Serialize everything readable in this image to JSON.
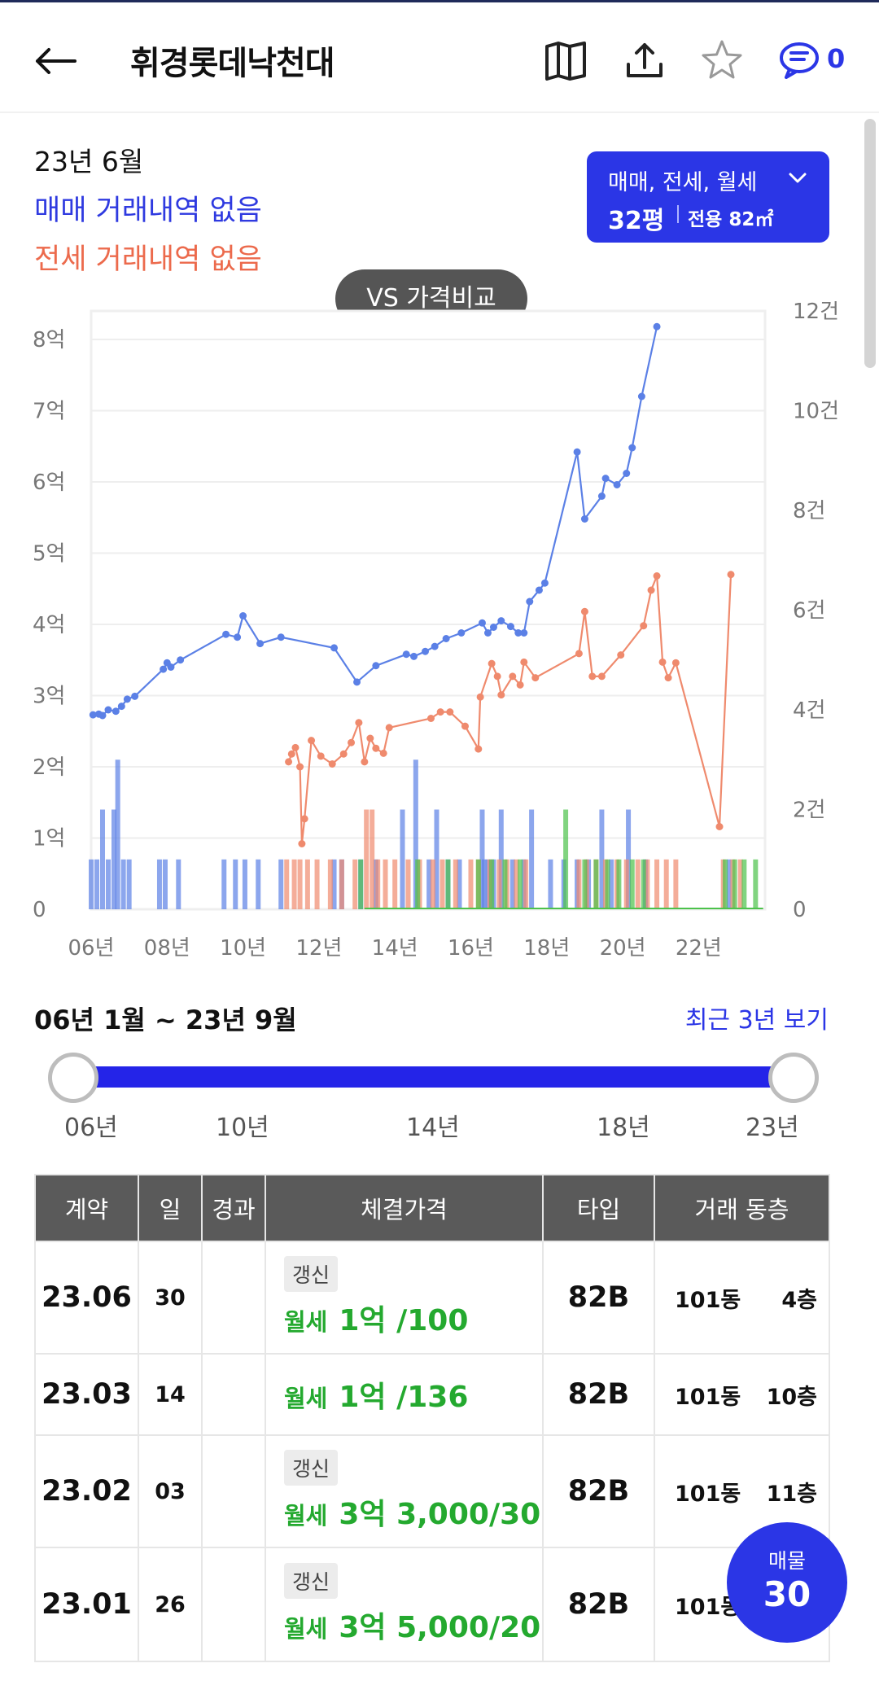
{
  "header": {
    "title": "휘경롯데낙천대",
    "comment_count": "0",
    "icons": [
      "back-arrow-icon",
      "map-icon",
      "share-icon",
      "star-icon",
      "comment-icon"
    ]
  },
  "info": {
    "date": "23년 6월",
    "sale_status": "매매 거래내역 없음",
    "jeonse_status": "전세 거래내역 없음"
  },
  "filter": {
    "types": "매매, 전세, 월세",
    "pyeong": "32평",
    "area": "전용 82㎡"
  },
  "vs_button": "VS 가격비교",
  "colors": {
    "accent": "#2b36e6",
    "sale": "#5b80e6",
    "jeonse": "#ef8a6d",
    "monthly": "#4cc24a"
  },
  "chart_data": {
    "type": "line",
    "left_ticks": [
      "8억",
      "7억",
      "6억",
      "5억",
      "4억",
      "3억",
      "2억",
      "1억",
      "0"
    ],
    "right_ticks": [
      "12건",
      "10건",
      "8건",
      "6건",
      "4건",
      "2건",
      "0"
    ],
    "x_ticks": [
      "06년",
      "08년",
      "10년",
      "12년",
      "14년",
      "16년",
      "18년",
      "20년",
      "22년"
    ],
    "ylim": [
      0,
      8.4
    ],
    "y2lim": [
      0,
      12
    ],
    "xlim": [
      2006.0,
      2023.75
    ],
    "series": [
      {
        "name": "매매",
        "color": "#5b80e6",
        "points": [
          [
            2006.05,
            2.73
          ],
          [
            2006.2,
            2.74
          ],
          [
            2006.3,
            2.72
          ],
          [
            2006.45,
            2.8
          ],
          [
            2006.65,
            2.78
          ],
          [
            2006.8,
            2.85
          ],
          [
            2006.95,
            2.95
          ],
          [
            2007.15,
            2.99
          ],
          [
            2007.9,
            3.37
          ],
          [
            2008.0,
            3.46
          ],
          [
            2008.1,
            3.4
          ],
          [
            2008.35,
            3.5
          ],
          [
            2009.55,
            3.86
          ],
          [
            2009.85,
            3.82
          ],
          [
            2010.0,
            4.12
          ],
          [
            2010.45,
            3.73
          ],
          [
            2011.0,
            3.82
          ],
          [
            2012.4,
            3.67
          ],
          [
            2013.0,
            3.19
          ],
          [
            2013.5,
            3.42
          ],
          [
            2014.3,
            3.58
          ],
          [
            2014.5,
            3.55
          ],
          [
            2014.8,
            3.62
          ],
          [
            2015.05,
            3.69
          ],
          [
            2015.35,
            3.8
          ],
          [
            2015.75,
            3.88
          ],
          [
            2016.3,
            4.02
          ],
          [
            2016.45,
            3.88
          ],
          [
            2016.6,
            3.96
          ],
          [
            2016.8,
            4.05
          ],
          [
            2017.05,
            3.97
          ],
          [
            2017.25,
            3.88
          ],
          [
            2017.4,
            3.88
          ],
          [
            2017.55,
            4.32
          ],
          [
            2017.8,
            4.48
          ],
          [
            2017.95,
            4.58
          ],
          [
            2018.8,
            6.42
          ],
          [
            2019.0,
            5.48
          ],
          [
            2019.45,
            5.8
          ],
          [
            2019.55,
            6.05
          ],
          [
            2019.85,
            5.96
          ],
          [
            2020.1,
            6.12
          ],
          [
            2020.25,
            6.48
          ],
          [
            2020.5,
            7.2
          ],
          [
            2020.9,
            8.18
          ]
        ]
      },
      {
        "name": "전세",
        "color": "#ef8a6d",
        "points": [
          [
            2011.2,
            2.07
          ],
          [
            2011.28,
            2.18
          ],
          [
            2011.38,
            2.27
          ],
          [
            2011.5,
            2.0
          ],
          [
            2011.55,
            0.92
          ],
          [
            2011.62,
            1.27
          ],
          [
            2011.8,
            2.37
          ],
          [
            2012.05,
            2.15
          ],
          [
            2012.35,
            2.04
          ],
          [
            2012.65,
            2.18
          ],
          [
            2012.85,
            2.34
          ],
          [
            2013.05,
            2.62
          ],
          [
            2013.2,
            2.07
          ],
          [
            2013.35,
            2.4
          ],
          [
            2013.5,
            2.26
          ],
          [
            2013.7,
            2.19
          ],
          [
            2013.85,
            2.55
          ],
          [
            2014.95,
            2.68
          ],
          [
            2015.2,
            2.77
          ],
          [
            2015.45,
            2.77
          ],
          [
            2015.85,
            2.57
          ],
          [
            2016.2,
            2.25
          ],
          [
            2016.25,
            2.98
          ],
          [
            2016.55,
            3.45
          ],
          [
            2016.7,
            3.27
          ],
          [
            2016.8,
            3.01
          ],
          [
            2017.1,
            3.27
          ],
          [
            2017.3,
            3.15
          ],
          [
            2017.4,
            3.47
          ],
          [
            2017.7,
            3.25
          ],
          [
            2018.85,
            3.59
          ],
          [
            2019.0,
            4.18
          ],
          [
            2019.2,
            3.27
          ],
          [
            2019.45,
            3.27
          ],
          [
            2019.95,
            3.57
          ],
          [
            2020.55,
            3.98
          ],
          [
            2020.75,
            4.48
          ],
          [
            2020.9,
            4.68
          ],
          [
            2021.05,
            3.47
          ],
          [
            2021.2,
            3.25
          ],
          [
            2021.4,
            3.46
          ],
          [
            2022.55,
            1.16
          ],
          [
            2022.85,
            4.7
          ]
        ]
      }
    ],
    "volume_note": "bar heights in 건 (transactions per month)",
    "volume_sale": [
      [
        2006.0,
        1
      ],
      [
        2006.15,
        1
      ],
      [
        2006.3,
        2
      ],
      [
        2006.45,
        1
      ],
      [
        2006.6,
        2
      ],
      [
        2006.7,
        3
      ],
      [
        2006.85,
        1
      ],
      [
        2007.0,
        1
      ],
      [
        2007.8,
        1
      ],
      [
        2007.95,
        1
      ],
      [
        2008.3,
        1
      ],
      [
        2009.5,
        1
      ],
      [
        2009.8,
        1
      ],
      [
        2010.05,
        1
      ],
      [
        2010.4,
        1
      ],
      [
        2011.0,
        1
      ],
      [
        2012.4,
        1
      ],
      [
        2012.6,
        1
      ],
      [
        2013.1,
        1
      ],
      [
        2013.5,
        1
      ],
      [
        2014.2,
        2
      ],
      [
        2014.55,
        3
      ],
      [
        2014.9,
        1
      ],
      [
        2015.1,
        2
      ],
      [
        2015.4,
        1
      ],
      [
        2015.7,
        1
      ],
      [
        2016.3,
        2
      ],
      [
        2016.35,
        1
      ],
      [
        2016.45,
        1
      ],
      [
        2016.6,
        1
      ],
      [
        2016.8,
        2
      ],
      [
        2017.1,
        1
      ],
      [
        2017.4,
        1
      ],
      [
        2017.6,
        2
      ],
      [
        2018.1,
        1
      ],
      [
        2018.45,
        1
      ],
      [
        2018.8,
        1
      ],
      [
        2019.1,
        1
      ],
      [
        2019.45,
        2
      ],
      [
        2019.7,
        1
      ],
      [
        2020.15,
        2
      ],
      [
        2020.6,
        1
      ],
      [
        2022.8,
        1
      ]
    ],
    "volume_jeonse": [
      [
        2011.15,
        1
      ],
      [
        2011.35,
        1
      ],
      [
        2011.5,
        1
      ],
      [
        2011.7,
        1
      ],
      [
        2011.95,
        1
      ],
      [
        2012.3,
        1
      ],
      [
        2012.6,
        1
      ],
      [
        2012.95,
        1
      ],
      [
        2013.25,
        2
      ],
      [
        2013.4,
        2
      ],
      [
        2013.55,
        1
      ],
      [
        2013.75,
        1
      ],
      [
        2014.0,
        1
      ],
      [
        2014.35,
        1
      ],
      [
        2014.65,
        1
      ],
      [
        2015.0,
        1
      ],
      [
        2015.25,
        1
      ],
      [
        2015.6,
        1
      ],
      [
        2016.0,
        1
      ],
      [
        2016.2,
        1
      ],
      [
        2016.5,
        1
      ],
      [
        2016.75,
        1
      ],
      [
        2016.95,
        1
      ],
      [
        2017.2,
        1
      ],
      [
        2017.45,
        1
      ],
      [
        2018.85,
        1
      ],
      [
        2019.05,
        1
      ],
      [
        2019.3,
        1
      ],
      [
        2019.55,
        1
      ],
      [
        2019.85,
        1
      ],
      [
        2020.1,
        1
      ],
      [
        2020.4,
        1
      ],
      [
        2020.65,
        1
      ],
      [
        2020.9,
        1
      ],
      [
        2021.15,
        1
      ],
      [
        2021.4,
        1
      ],
      [
        2022.65,
        1
      ],
      [
        2022.9,
        1
      ],
      [
        2023.1,
        1
      ]
    ],
    "volume_monthly": [
      [
        2013.1,
        1
      ],
      [
        2014.6,
        1
      ],
      [
        2015.4,
        1
      ],
      [
        2016.2,
        1
      ],
      [
        2016.55,
        1
      ],
      [
        2016.9,
        1
      ],
      [
        2017.3,
        1
      ],
      [
        2018.5,
        2
      ],
      [
        2019.0,
        1
      ],
      [
        2019.3,
        1
      ],
      [
        2019.6,
        1
      ],
      [
        2019.9,
        1
      ],
      [
        2020.25,
        1
      ],
      [
        2020.55,
        1
      ],
      [
        2022.7,
        1
      ],
      [
        2022.95,
        1
      ],
      [
        2023.2,
        1
      ],
      [
        2023.5,
        1
      ]
    ],
    "monthly_line": [
      [
        2013.2,
        0
      ],
      [
        2023.7,
        0
      ]
    ],
    "legend": "none",
    "grid": true
  },
  "range": {
    "title": "06년 1월 ~ 23년 9월",
    "recent_link": "최근 3년 보기",
    "labels": [
      "06년",
      "10년",
      "14년",
      "18년",
      "23년"
    ]
  },
  "table": {
    "headers": [
      "계약",
      "일",
      "경과",
      "체결가격",
      "타입",
      "거래 동층"
    ],
    "rows": [
      {
        "contract": "23.06",
        "day": "30",
        "elapsed": "",
        "tag": "갱신",
        "deal_type": "월세",
        "price": "1억 /100",
        "type": "82B",
        "dong": "101동",
        "floor": "4층"
      },
      {
        "contract": "23.03",
        "day": "14",
        "elapsed": "",
        "tag": "",
        "deal_type": "월세",
        "price": "1억 /136",
        "type": "82B",
        "dong": "101동",
        "floor": "10층"
      },
      {
        "contract": "23.02",
        "day": "03",
        "elapsed": "",
        "tag": "갱신",
        "deal_type": "월세",
        "price": "3억 3,000/30",
        "type": "82B",
        "dong": "101동",
        "floor": "11층"
      },
      {
        "contract": "23.01",
        "day": "26",
        "elapsed": "",
        "tag": "갱신",
        "deal_type": "월세",
        "price": "3억 5,000/20",
        "type": "82B",
        "dong": "101동",
        "floor": ""
      }
    ]
  },
  "fab": {
    "label": "매물",
    "count": "30"
  }
}
